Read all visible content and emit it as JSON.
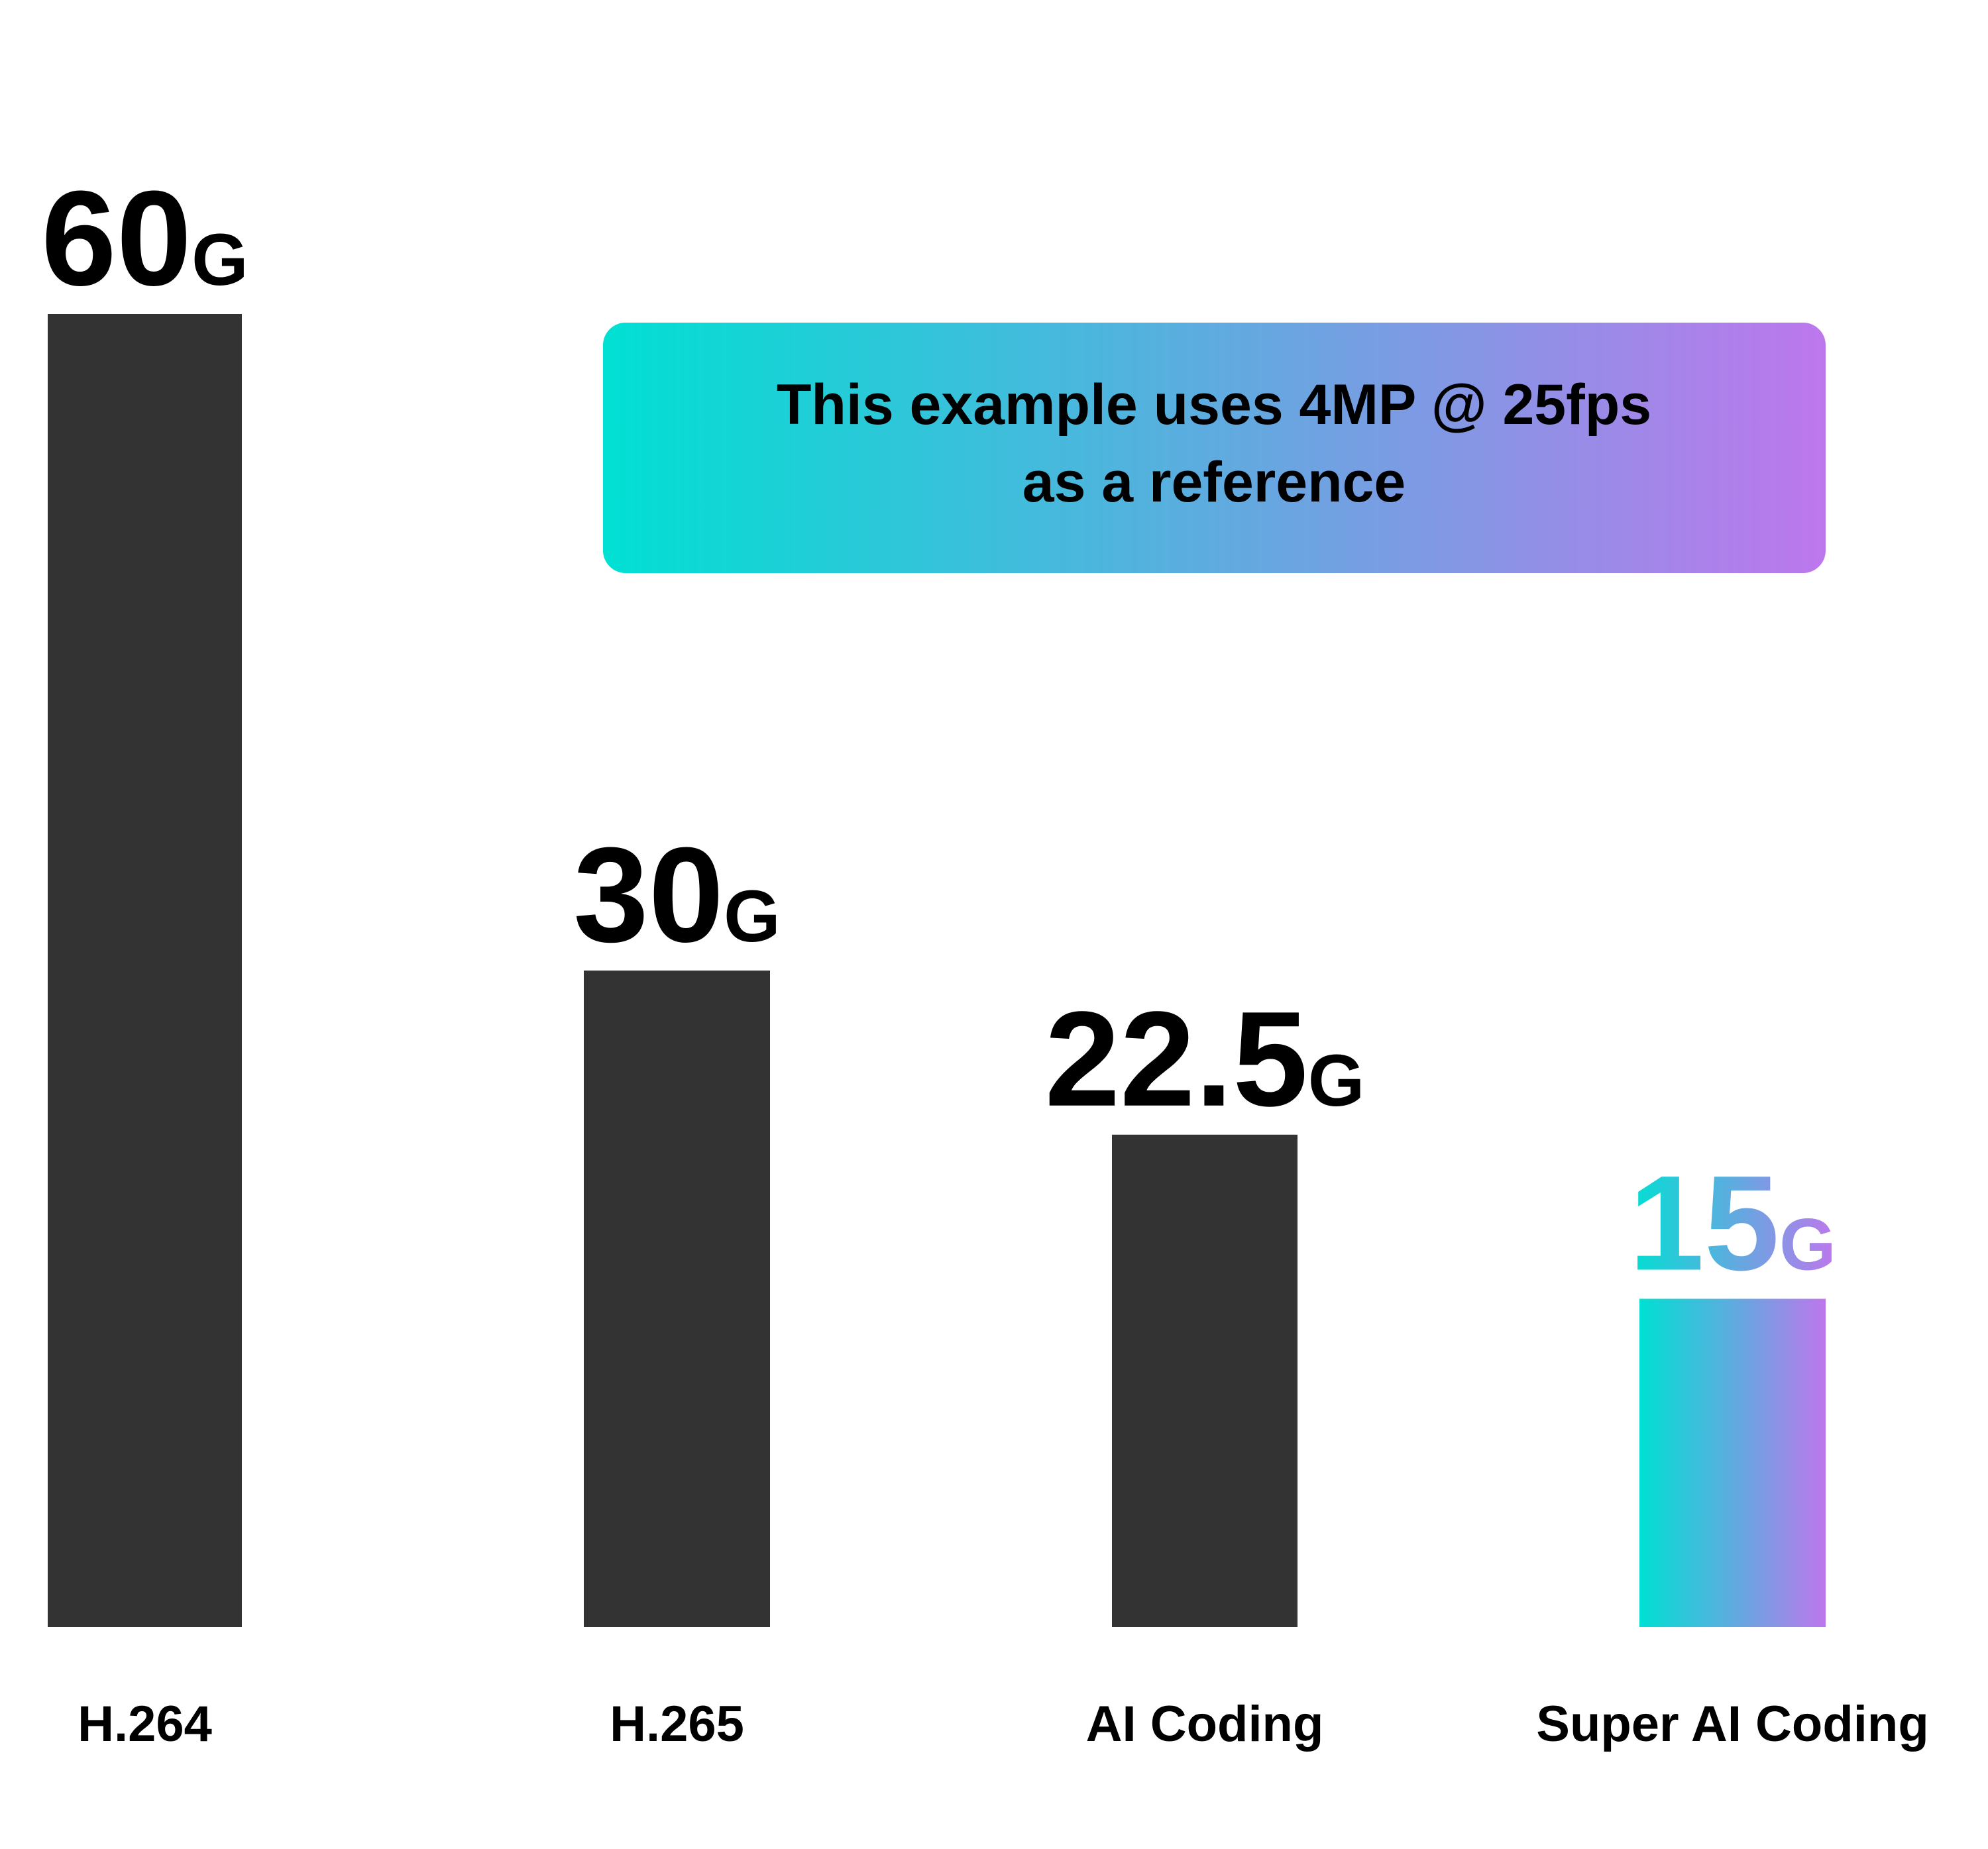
{
  "chart_data": {
    "type": "bar",
    "categories": [
      "H.264",
      "H.265",
      "AI Coding",
      "Super AI Coding"
    ],
    "values": [
      60,
      30,
      22.5,
      15
    ],
    "value_labels": [
      "60",
      "30",
      "22.5",
      "15"
    ],
    "unit": "G",
    "highlight_index": 3,
    "annotation": {
      "lines": [
        "This example uses 4MP @ 25fps",
        "as a reference"
      ]
    },
    "title": "",
    "xlabel": "",
    "ylabel": "",
    "ylim": [
      0,
      60
    ],
    "grid": false,
    "legend": "none"
  },
  "colors": {
    "background": "#ffffff",
    "bar": "#333333",
    "text": "#000000",
    "gradient_start": "#00e0d3",
    "gradient_end": "#bd77ec"
  }
}
